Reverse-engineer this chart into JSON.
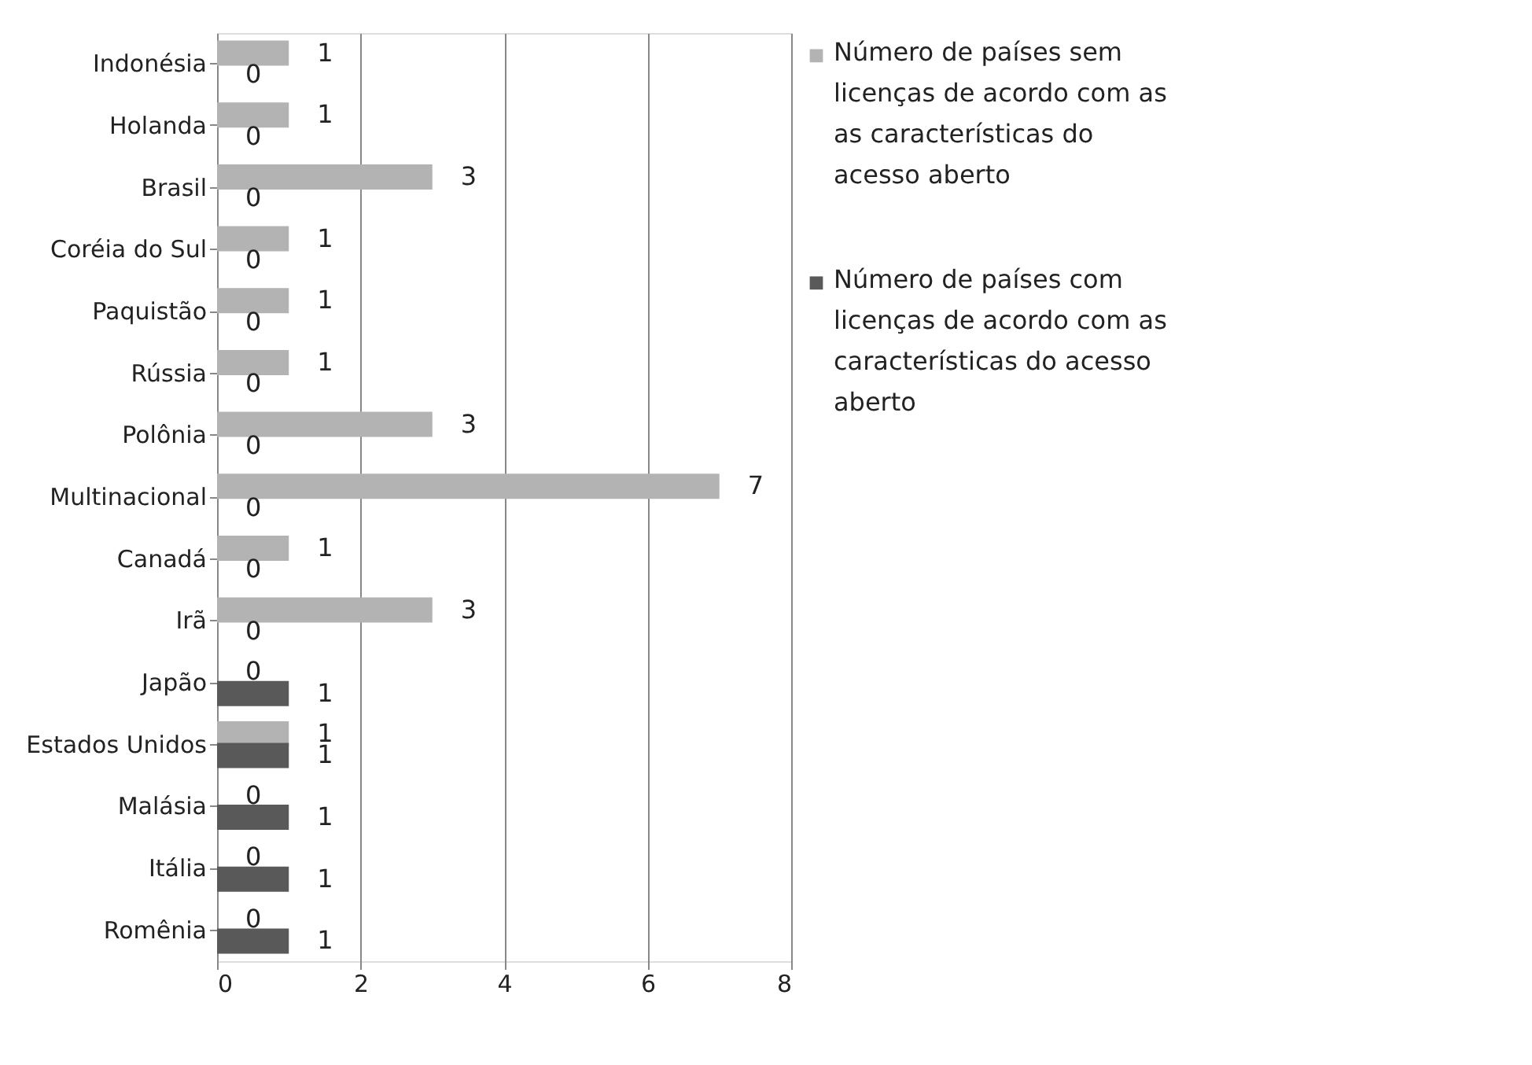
{
  "chart_data": {
    "type": "bar",
    "orientation": "horizontal",
    "categories": [
      "Indonésia",
      "Holanda",
      "Brasil",
      "Coréia do Sul",
      "Paquistão",
      "Rússia",
      "Polônia",
      "Multinacional",
      "Canadá",
      "Irã",
      "Japão",
      "Estados Unidos",
      "Malásia",
      "Itália",
      "Romênia"
    ],
    "series": [
      {
        "name": "Número de países  sem licenças de acordo com as as características do acesso aberto",
        "color": "#b3b3b3",
        "values": [
          1,
          1,
          3,
          1,
          1,
          1,
          3,
          7,
          1,
          3,
          0,
          1,
          0,
          0,
          0
        ]
      },
      {
        "name": "Número de países com licenças de acordo com as características do acesso aberto",
        "color": "#595959",
        "values": [
          0,
          0,
          0,
          0,
          0,
          0,
          0,
          0,
          0,
          0,
          1,
          1,
          1,
          1,
          1
        ]
      }
    ],
    "xlim": [
      0,
      8
    ],
    "xticks": [
      0,
      2,
      4,
      6,
      8
    ],
    "grid": "x",
    "legend": "right",
    "data_labels": true
  }
}
